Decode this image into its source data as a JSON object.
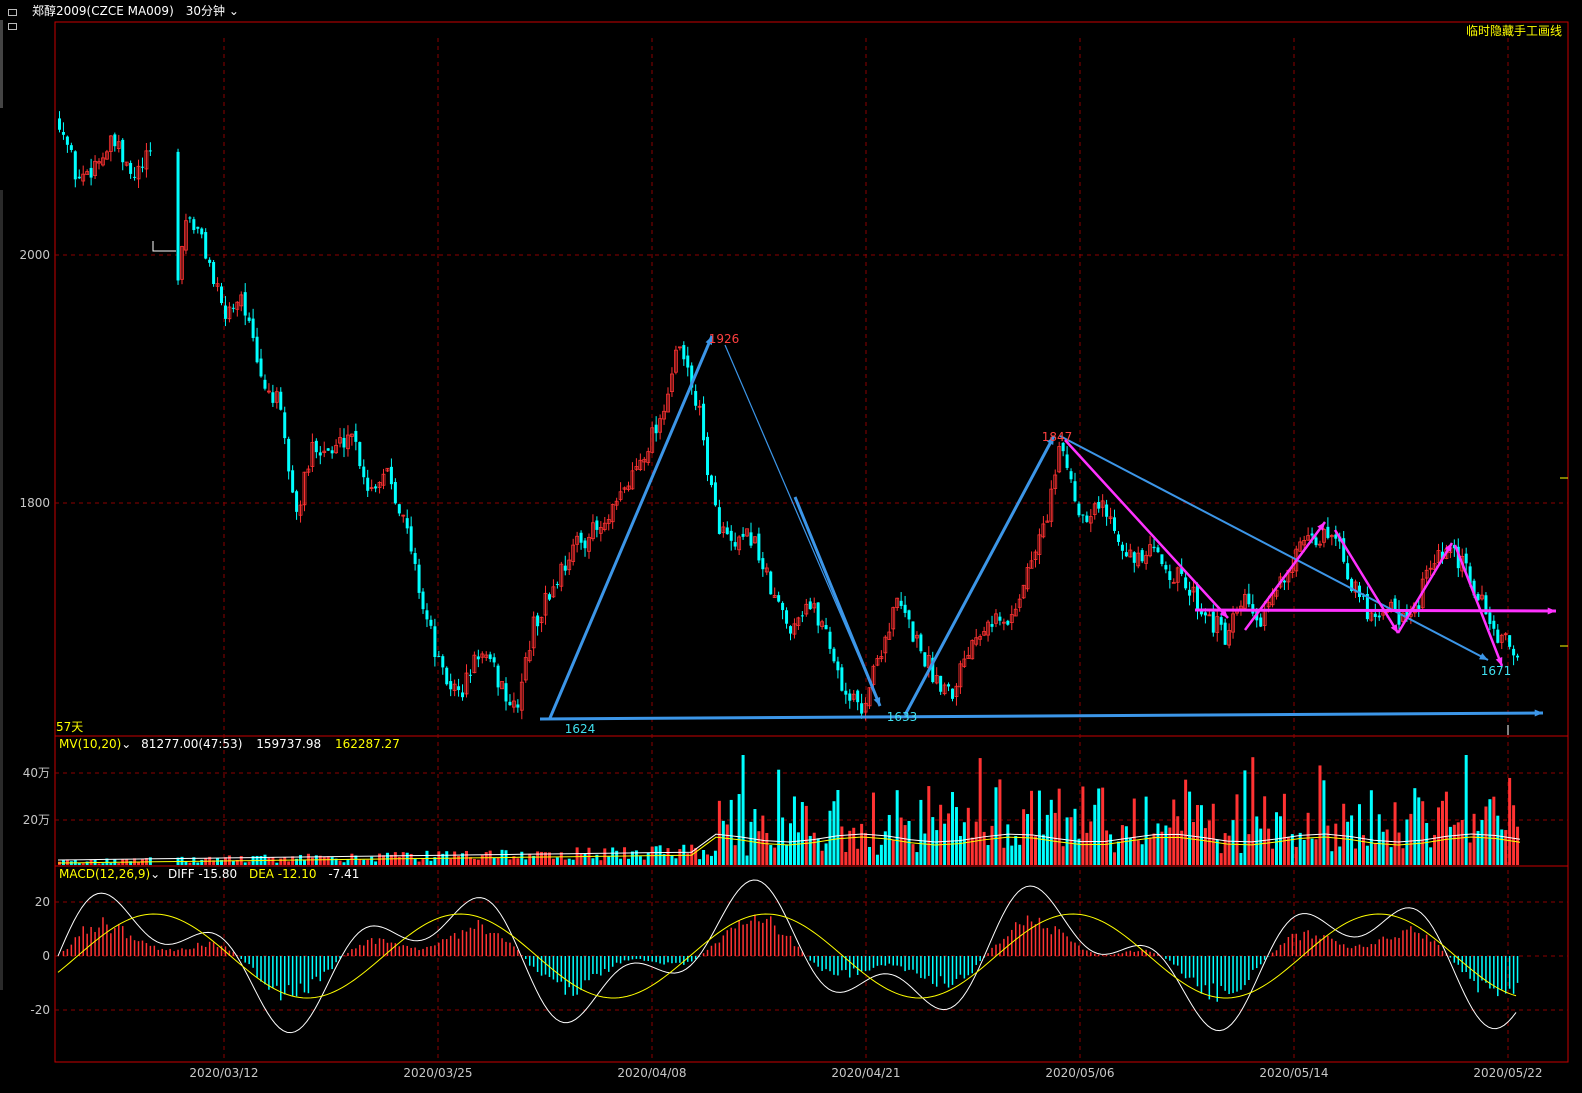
{
  "titlebar": {
    "symbol": "郑醇2009(CZCE MA009)",
    "period": "30分钟",
    "period_chevron": "chevron-down-icon",
    "window_icon": "window-restore-icon"
  },
  "hide_drawing_label": "临时隐藏手工画线",
  "days_label": "57天",
  "main_panel": {
    "y_labels": [
      "2000",
      "1800"
    ],
    "annotations": [
      "1926",
      "1847",
      "1624",
      "1633",
      "1671"
    ]
  },
  "volume_panel": {
    "indicator": "MV(10,20)",
    "values": [
      "81277.00(47:53)",
      "159737.98",
      "162287.27"
    ],
    "y_labels": [
      "40万",
      "20万"
    ]
  },
  "macd_panel": {
    "indicator": "MACD(12,26,9)",
    "diff": "DIFF -15.80",
    "dea": "DEA -12.10",
    "macd": "-7.41",
    "y_labels": [
      "20",
      "0",
      "-20"
    ]
  },
  "x_dates": [
    "2020/03/12",
    "2020/03/25",
    "2020/04/08",
    "2020/04/21",
    "2020/05/06",
    "2020/05/14",
    "2020/05/22"
  ],
  "colors": {
    "up": "#ff3232",
    "down": "#00ffff",
    "grid": "#8b0000",
    "frame": "#c80000",
    "drawing_blue": "#3c96e8",
    "drawing_magenta": "#ff32ff",
    "label_yellow": "#ffff00",
    "annotation_red": "#ff4040",
    "annotation_cyan": "#40e0f0"
  },
  "chart_data": {
    "type": "candlestick",
    "series": [
      {
        "name": "MV(10,20)",
        "values": [
          81277.0,
          159737.98,
          162287.27
        ]
      }
    ],
    "price_anchors": {
      "high_1": 1926,
      "high_2": 1847,
      "low_1": 1624,
      "low_2": 1633,
      "low_3": 1671
    },
    "price_path": [
      2110,
      2060,
      2075,
      2090,
      2060,
      2080,
      1930,
      2035,
      2005,
      1950,
      1970,
      1900,
      1880,
      1790,
      1850,
      1840,
      1860,
      1810,
      1830,
      1780,
      1715,
      1660,
      1645,
      1680,
      1660,
      1630,
      1700,
      1730,
      1760,
      1775,
      1780,
      1810,
      1840,
      1870,
      1926,
      1880,
      1790,
      1760,
      1775,
      1730,
      1700,
      1720,
      1700,
      1650,
      1633,
      1680,
      1720,
      1690,
      1660,
      1650,
      1690,
      1710,
      1700,
      1740,
      1780,
      1847,
      1790,
      1800,
      1780,
      1750,
      1760,
      1745,
      1730,
      1710,
      1690,
      1720,
      1700,
      1740,
      1760,
      1770,
      1780,
      1730,
      1710,
      1720,
      1700,
      1740,
      1760,
      1750,
      1720,
      1690,
      1680
    ]
  }
}
